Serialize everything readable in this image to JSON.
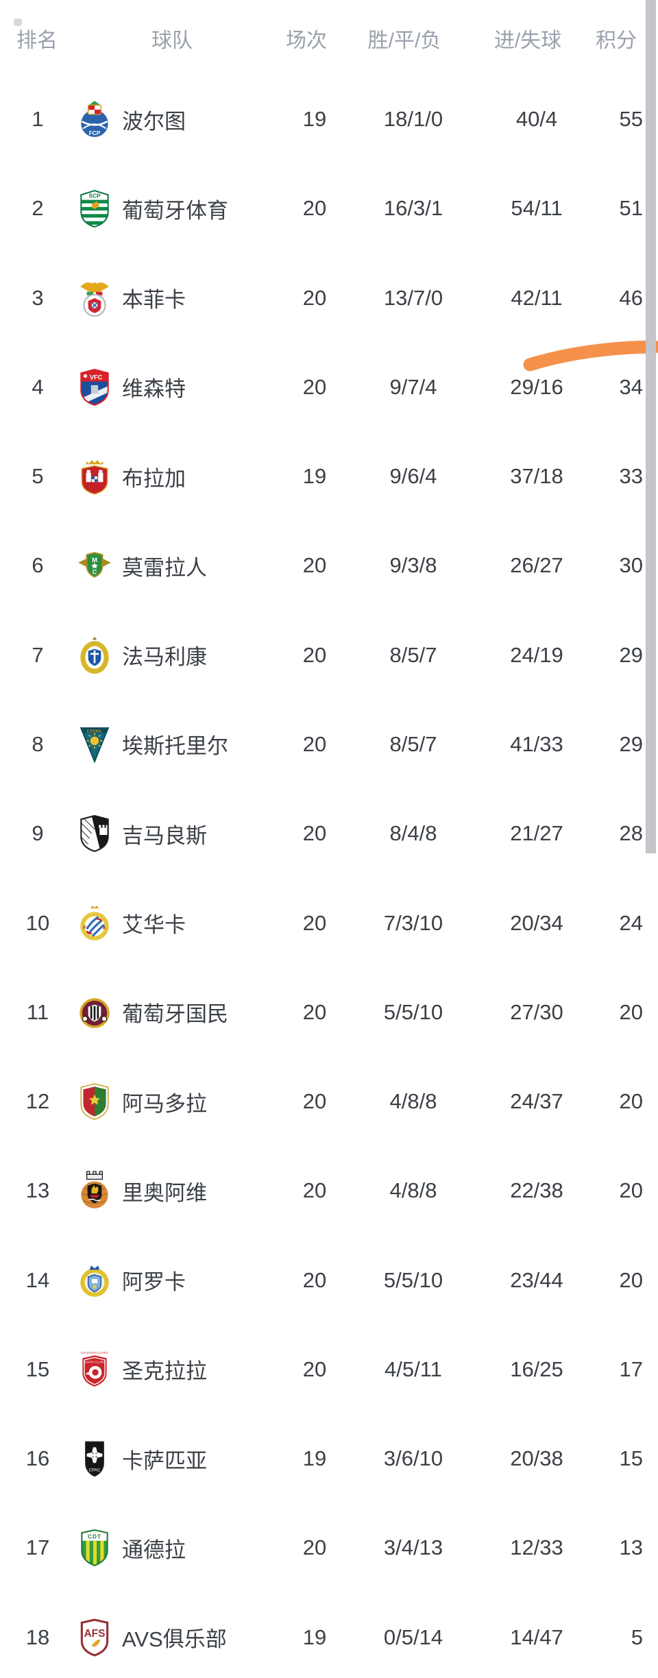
{
  "header": {
    "rank": "排名",
    "team": "球队",
    "played": "场次",
    "wdl": "胜/平/负",
    "goals": "进/失球",
    "points": "积分"
  },
  "colors": {
    "header_text": "#9aa0ac",
    "body_text": "#3b4046",
    "scrollbar": "#c3c5c9",
    "marker": "#f5914b"
  },
  "annotation": {
    "marker_shape": "hand-drawn orange highlight stroke above row 4"
  },
  "table": {
    "rows": [
      {
        "rank": "1",
        "team": "波尔图",
        "logo": "porto-crest-icon",
        "played": "19",
        "wdl": "18/1/0",
        "goals": "40/4",
        "points": "55"
      },
      {
        "rank": "2",
        "team": "葡萄牙体育",
        "logo": "sporting-crest-icon",
        "played": "20",
        "wdl": "16/3/1",
        "goals": "54/11",
        "points": "51"
      },
      {
        "rank": "3",
        "team": "本菲卡",
        "logo": "benfica-crest-icon",
        "played": "20",
        "wdl": "13/7/0",
        "goals": "42/11",
        "points": "46"
      },
      {
        "rank": "4",
        "team": "维森特",
        "logo": "gil-vicente-crest-icon",
        "played": "20",
        "wdl": "9/7/4",
        "goals": "29/16",
        "points": "34"
      },
      {
        "rank": "5",
        "team": "布拉加",
        "logo": "braga-crest-icon",
        "played": "19",
        "wdl": "9/6/4",
        "goals": "37/18",
        "points": "33"
      },
      {
        "rank": "6",
        "team": "莫雷拉人",
        "logo": "moreirense-crest-icon",
        "played": "20",
        "wdl": "9/3/8",
        "goals": "26/27",
        "points": "30"
      },
      {
        "rank": "7",
        "team": "法马利康",
        "logo": "famalicao-crest-icon",
        "played": "20",
        "wdl": "8/5/7",
        "goals": "24/19",
        "points": "29"
      },
      {
        "rank": "8",
        "team": "埃斯托里尔",
        "logo": "estoril-crest-icon",
        "played": "20",
        "wdl": "8/5/7",
        "goals": "41/33",
        "points": "29"
      },
      {
        "rank": "9",
        "team": "吉马良斯",
        "logo": "guimaraes-crest-icon",
        "played": "20",
        "wdl": "8/4/8",
        "goals": "21/27",
        "points": "28"
      },
      {
        "rank": "10",
        "team": "艾华卡",
        "logo": "alverca-crest-icon",
        "played": "20",
        "wdl": "7/3/10",
        "goals": "20/34",
        "points": "24"
      },
      {
        "rank": "11",
        "team": "葡萄牙国民",
        "logo": "nacional-crest-icon",
        "played": "20",
        "wdl": "5/5/10",
        "goals": "27/30",
        "points": "20"
      },
      {
        "rank": "12",
        "team": "阿马多拉",
        "logo": "amadora-crest-icon",
        "played": "20",
        "wdl": "4/8/8",
        "goals": "24/37",
        "points": "20"
      },
      {
        "rank": "13",
        "team": "里奥阿维",
        "logo": "rio-ave-crest-icon",
        "played": "20",
        "wdl": "4/8/8",
        "goals": "22/38",
        "points": "20"
      },
      {
        "rank": "14",
        "team": "阿罗卡",
        "logo": "arouca-crest-icon",
        "played": "20",
        "wdl": "5/5/10",
        "goals": "23/44",
        "points": "20"
      },
      {
        "rank": "15",
        "team": "圣克拉拉",
        "logo": "santa-clara-crest-icon",
        "played": "20",
        "wdl": "4/5/11",
        "goals": "16/25",
        "points": "17"
      },
      {
        "rank": "16",
        "team": "卡萨匹亚",
        "logo": "casa-pia-crest-icon",
        "played": "19",
        "wdl": "3/6/10",
        "goals": "20/38",
        "points": "15"
      },
      {
        "rank": "17",
        "team": "通德拉",
        "logo": "tondela-crest-icon",
        "played": "20",
        "wdl": "3/4/13",
        "goals": "12/33",
        "points": "13"
      },
      {
        "rank": "18",
        "team": "AVS俱乐部",
        "logo": "avs-crest-icon",
        "played": "19",
        "wdl": "0/5/14",
        "goals": "14/47",
        "points": "5"
      }
    ]
  }
}
